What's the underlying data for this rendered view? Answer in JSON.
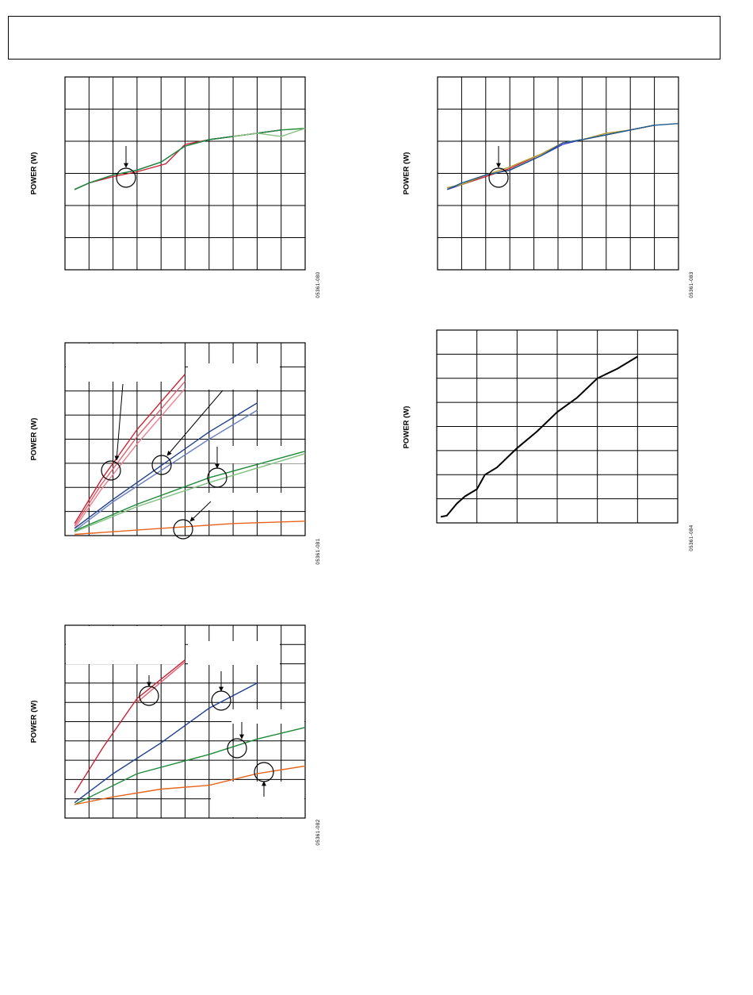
{
  "page": {
    "header_text": ""
  },
  "colors": {
    "red": "#cc2233",
    "blue": "#1f3f8f",
    "green": "#1f8a3a",
    "orange": "#e8641a",
    "black": "#000000"
  },
  "chart_data": [
    {
      "type": "line",
      "ylabel": "POWER (W)",
      "figure_id": "05361-080",
      "grid": true,
      "xlim": [
        0,
        10
      ],
      "ylim": [
        0,
        6
      ],
      "series": [
        {
          "color": "#cc2233",
          "points": [
            [
              0.4,
              2.5
            ],
            [
              1,
              2.7
            ],
            [
              2,
              2.9
            ],
            [
              3,
              3.05
            ],
            [
              4.2,
              3.3
            ],
            [
              5,
              3.9
            ],
            [
              6,
              4.05
            ],
            [
              7,
              4.15
            ],
            [
              8,
              4.25
            ],
            [
              9,
              4.35
            ]
          ]
        },
        {
          "color": "#1f3f8f",
          "points": [
            [
              0.4,
              2.5
            ],
            [
              1,
              2.7
            ],
            [
              2,
              2.95
            ],
            [
              3,
              3.1
            ],
            [
              4,
              3.35
            ],
            [
              5,
              3.85
            ],
            [
              6,
              4.05
            ],
            [
              7,
              4.15
            ],
            [
              8,
              4.25
            ],
            [
              9,
              4.35
            ]
          ]
        },
        {
          "color": "#1f8a3a",
          "points": [
            [
              0.4,
              2.5
            ],
            [
              1,
              2.7
            ],
            [
              2,
              2.95
            ],
            [
              3,
              3.1
            ],
            [
              4,
              3.35
            ],
            [
              5,
              3.85
            ],
            [
              6,
              4.05
            ],
            [
              7,
              4.15
            ],
            [
              8,
              4.25
            ],
            [
              9,
              4.35
            ],
            [
              10,
              4.4
            ]
          ]
        },
        {
          "color": "#88c080",
          "points": [
            [
              7,
              4.15
            ],
            [
              8,
              4.25
            ],
            [
              9,
              4.15
            ],
            [
              10,
              4.4
            ]
          ]
        }
      ]
    },
    {
      "type": "line",
      "ylabel": "POWER (W)",
      "figure_id": "05361-081",
      "grid": true,
      "xlim": [
        0,
        10
      ],
      "ylim": [
        0,
        8
      ],
      "series": [
        {
          "color": "#cc2233",
          "points": [
            [
              0.4,
              0.5
            ],
            [
              1.5,
              2.3
            ],
            [
              3,
              4.4
            ],
            [
              5,
              6.7
            ]
          ]
        },
        {
          "color": "#e06070",
          "points": [
            [
              0.4,
              0.4
            ],
            [
              1.5,
              2.1
            ],
            [
              3,
              4.1
            ],
            [
              5,
              6.4
            ]
          ]
        },
        {
          "color": "#f08090",
          "points": [
            [
              0.4,
              0.3
            ],
            [
              1.5,
              1.9
            ],
            [
              3,
              3.8
            ],
            [
              5,
              6.1
            ]
          ]
        },
        {
          "color": "#1f3f8f",
          "points": [
            [
              0.4,
              0.3
            ],
            [
              2,
              1.5
            ],
            [
              4,
              2.9
            ],
            [
              6,
              4.3
            ],
            [
              8,
              5.5
            ]
          ]
        },
        {
          "color": "#6a80c0",
          "points": [
            [
              0.4,
              0.2
            ],
            [
              2,
              1.4
            ],
            [
              4,
              2.7
            ],
            [
              6,
              4.0
            ],
            [
              8,
              5.2
            ]
          ]
        },
        {
          "color": "#1f8a3a",
          "points": [
            [
              0.4,
              0.2
            ],
            [
              3,
              1.3
            ],
            [
              6,
              2.4
            ],
            [
              10,
              3.5
            ]
          ]
        },
        {
          "color": "#7fc07f",
          "points": [
            [
              0.4,
              0.15
            ],
            [
              3,
              1.2
            ],
            [
              6,
              2.2
            ],
            [
              10,
              3.4
            ]
          ]
        },
        {
          "color": "#e8641a",
          "points": [
            [
              0.4,
              0.05
            ],
            [
              4,
              0.3
            ],
            [
              7,
              0.5
            ],
            [
              10,
              0.6
            ]
          ]
        }
      ]
    },
    {
      "type": "line",
      "ylabel": "POWER (W)",
      "figure_id": "05361-082",
      "grid": true,
      "xlim": [
        0,
        10
      ],
      "ylim": [
        0,
        10
      ],
      "series": [
        {
          "color": "#cc2233",
          "points": [
            [
              0.4,
              1.3
            ],
            [
              1.6,
              3.7
            ],
            [
              3,
              6.2
            ],
            [
              5,
              8.2
            ]
          ]
        },
        {
          "color": "#e06070",
          "points": [
            [
              3,
              6.0
            ],
            [
              5,
              8.1
            ]
          ]
        },
        {
          "color": "#1f3f8f",
          "points": [
            [
              0.4,
              0.8
            ],
            [
              2,
              2.3
            ],
            [
              4,
              3.9
            ],
            [
              6,
              5.7
            ],
            [
              8,
              7.0
            ]
          ]
        },
        {
          "color": "#1f8a3a",
          "points": [
            [
              0.4,
              0.7
            ],
            [
              3,
              2.3
            ],
            [
              6,
              3.3
            ],
            [
              8,
              4.1
            ],
            [
              10,
              4.7
            ]
          ]
        },
        {
          "color": "#e8641a",
          "points": [
            [
              0.4,
              0.7
            ],
            [
              2,
              1.1
            ],
            [
              4,
              1.5
            ],
            [
              6,
              1.7
            ],
            [
              8,
              2.3
            ],
            [
              10,
              2.7
            ]
          ]
        }
      ]
    },
    {
      "type": "line",
      "ylabel": "POWER (W)",
      "figure_id": "05361-083",
      "grid": true,
      "xlim": [
        0,
        10
      ],
      "ylim": [
        0,
        6
      ],
      "series": [
        {
          "color": "#cc2233",
          "points": [
            [
              0.4,
              2.55
            ],
            [
              1,
              2.65
            ],
            [
              2,
              2.9
            ],
            [
              3,
              3.15
            ],
            [
              4.3,
              3.6
            ],
            [
              5.2,
              3.95
            ],
            [
              6,
              4.05
            ],
            [
              7,
              4.2
            ],
            [
              8,
              4.35
            ],
            [
              9,
              4.5
            ]
          ]
        },
        {
          "color": "#3a3ad0",
          "points": [
            [
              0.4,
              2.5
            ],
            [
              1,
              2.65
            ],
            [
              2,
              2.95
            ],
            [
              3,
              3.1
            ],
            [
              4.3,
              3.55
            ],
            [
              5.2,
              3.9
            ],
            [
              6,
              4.05
            ],
            [
              7,
              4.2
            ],
            [
              8,
              4.35
            ],
            [
              9,
              4.5
            ]
          ]
        },
        {
          "color": "#b0a030",
          "points": [
            [
              0.4,
              2.55
            ],
            [
              1,
              2.65
            ],
            [
              2,
              2.95
            ],
            [
              3,
              3.2
            ],
            [
              4.3,
              3.6
            ],
            [
              5.2,
              3.95
            ],
            [
              6,
              4.05
            ],
            [
              7,
              4.25
            ],
            [
              8,
              4.35
            ],
            [
              9,
              4.5
            ]
          ]
        },
        {
          "color": "#1f5a8a",
          "points": [
            [
              0.4,
              2.5
            ],
            [
              1,
              2.7
            ],
            [
              2,
              2.95
            ],
            [
              3,
              3.1
            ],
            [
              4.3,
              3.55
            ],
            [
              5.2,
              3.95
            ],
            [
              6,
              4.05
            ],
            [
              7,
              4.2
            ],
            [
              8,
              4.35
            ],
            [
              9,
              4.5
            ],
            [
              10,
              4.55
            ]
          ]
        }
      ]
    },
    {
      "type": "line",
      "ylabel": "POWER (W)",
      "figure_id": "05361-084",
      "grid": true,
      "xlim": [
        0,
        6
      ],
      "ylim": [
        0,
        8
      ],
      "series": [
        {
          "color": "#000000",
          "points": [
            [
              0.1,
              0.25
            ],
            [
              0.25,
              0.3
            ],
            [
              0.5,
              0.8
            ],
            [
              0.7,
              1.1
            ],
            [
              1,
              1.4
            ],
            [
              1.2,
              2.0
            ],
            [
              1.5,
              2.3
            ],
            [
              2,
              3.1
            ],
            [
              2.5,
              3.8
            ],
            [
              3,
              4.6
            ],
            [
              3.5,
              5.2
            ],
            [
              4,
              6.0
            ],
            [
              4.5,
              6.4
            ],
            [
              5,
              6.9
            ]
          ]
        }
      ]
    }
  ]
}
